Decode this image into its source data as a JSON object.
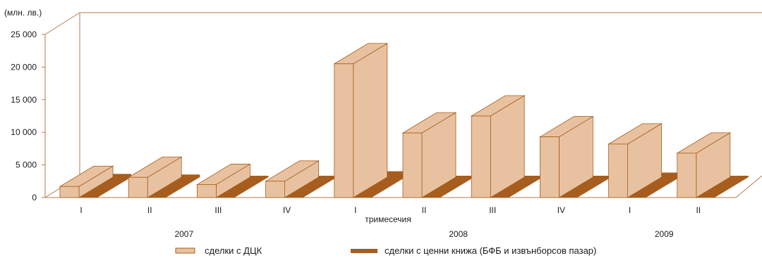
{
  "chart_data": {
    "type": "bar",
    "unit_label": "(млн. лв.)",
    "categories": [
      "I",
      "II",
      "III",
      "IV",
      "I",
      "II",
      "III",
      "IV",
      "I",
      "II"
    ],
    "groups": [
      {
        "label": "2007",
        "span": [
          0,
          3
        ]
      },
      {
        "label": "2008",
        "span": [
          4,
          7
        ]
      },
      {
        "label": "2009",
        "span": [
          8,
          9
        ]
      }
    ],
    "xlabel": "тримесечия",
    "ylabel": "",
    "ylim": [
      0,
      25000
    ],
    "yticks": [
      0,
      5000,
      10000,
      15000,
      20000,
      25000
    ],
    "ytick_labels": [
      "0",
      "5 000",
      "10 000",
      "15 000",
      "20 000",
      "25 000"
    ],
    "series": [
      {
        "name": "сделки с ДЦК",
        "color": "#e8c2a0",
        "values": [
          1700,
          3100,
          2000,
          2500,
          20500,
          9900,
          12500,
          9300,
          8200,
          6800
        ]
      },
      {
        "name": "сделки с ценни книжа (БФБ и извънборсов пазар)",
        "color": "#a65d1e",
        "values": [
          500,
          400,
          50,
          50,
          900,
          100,
          50,
          80,
          700,
          100
        ]
      }
    ],
    "grid": false,
    "legend": "bottom"
  }
}
